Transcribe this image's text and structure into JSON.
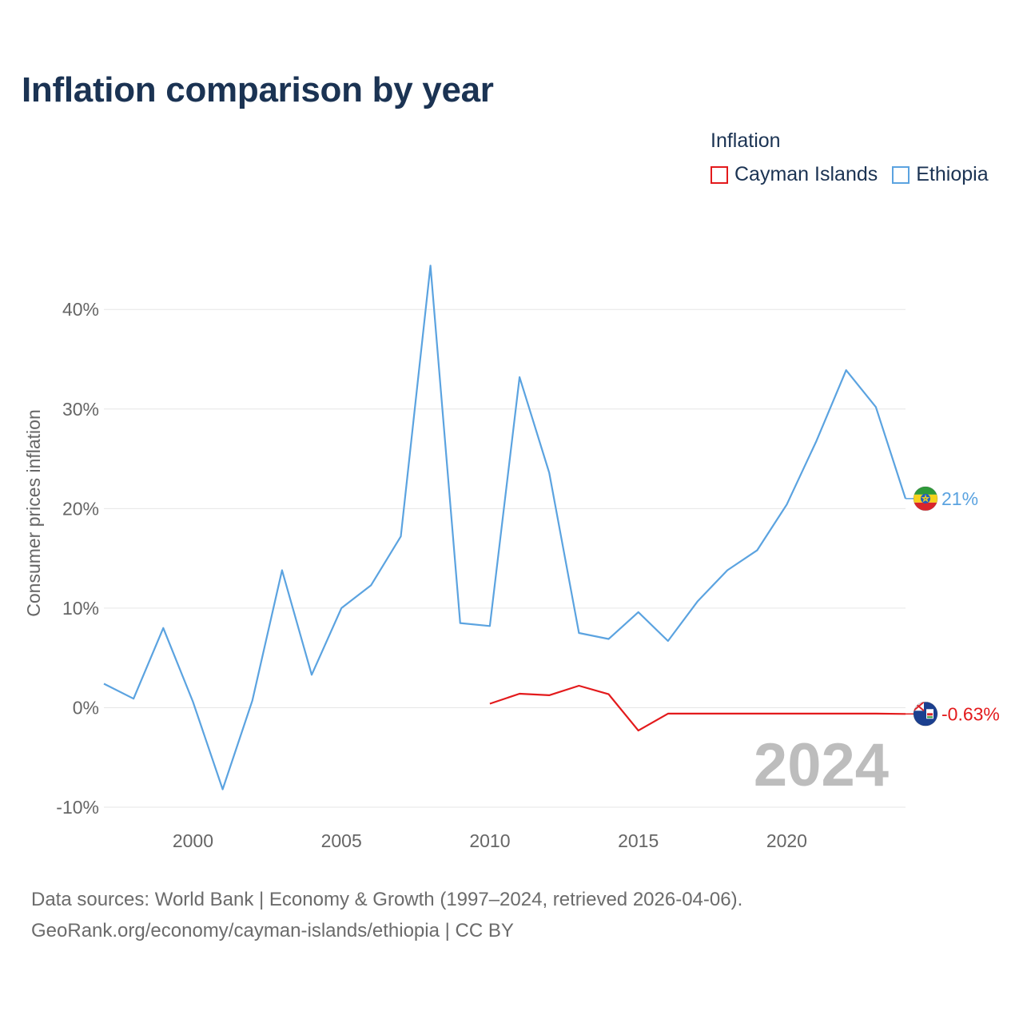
{
  "chart_data": {
    "type": "line",
    "title": "Inflation comparison by year",
    "legend_title": "Inflation",
    "legend_position": "top-right",
    "ylabel": "Consumer prices inflation",
    "xlabel": "",
    "xlim": [
      1997,
      2024
    ],
    "ylim": [
      -10,
      47
    ],
    "x_ticks": [
      2000,
      2005,
      2010,
      2015,
      2020
    ],
    "y_ticks": [
      -10,
      0,
      10,
      20,
      30,
      40
    ],
    "y_tick_labels": [
      "-10%",
      "0%",
      "10%",
      "20%",
      "30%",
      "40%"
    ],
    "grid": true,
    "year_watermark": "2024",
    "series": [
      {
        "name": "Cayman Islands",
        "color": "#e31a1c",
        "end_label": "-0.63%",
        "flag_icon": "cayman-islands-flag-icon",
        "x": [
          2010,
          2011,
          2012,
          2013,
          2014,
          2015,
          2016,
          2017,
          2018,
          2019,
          2020,
          2021,
          2022,
          2023,
          2024
        ],
        "values": [
          0.4,
          1.4,
          1.25,
          2.2,
          1.35,
          -2.3,
          -0.6,
          -0.6,
          -0.6,
          -0.6,
          -0.6,
          -0.6,
          -0.6,
          -0.6,
          -0.63
        ]
      },
      {
        "name": "Ethiopia",
        "color": "#5ba3e0",
        "end_label": "21%",
        "flag_icon": "ethiopia-flag-icon",
        "x": [
          1997,
          1998,
          1999,
          2000,
          2001,
          2002,
          2003,
          2004,
          2005,
          2006,
          2007,
          2008,
          2009,
          2010,
          2011,
          2012,
          2013,
          2014,
          2015,
          2016,
          2017,
          2018,
          2019,
          2020,
          2021,
          2022,
          2023,
          2024
        ],
        "values": [
          2.4,
          0.9,
          8.0,
          0.6,
          -8.2,
          0.7,
          13.8,
          3.3,
          10.0,
          12.3,
          17.2,
          44.4,
          8.5,
          8.2,
          33.2,
          23.6,
          7.5,
          6.9,
          9.6,
          6.7,
          10.7,
          13.8,
          15.8,
          20.4,
          26.8,
          33.9,
          30.2,
          21.0
        ]
      }
    ]
  },
  "footer": {
    "line1": "Data sources: World Bank | Economy & Growth (1997–2024, retrieved 2026-04-06).",
    "line2": "GeoRank.org/economy/cayman-islands/ethiopia | CC BY"
  }
}
